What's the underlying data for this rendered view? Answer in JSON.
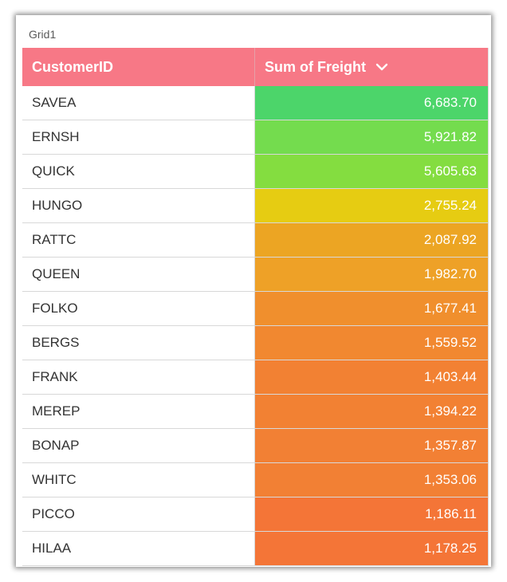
{
  "grid": {
    "title": "Grid1",
    "columns": {
      "customer_id": "CustomerID",
      "freight": "Sum of Freight"
    },
    "sort_icon": "chevron-down-icon",
    "header_color": "#f77886",
    "rows": [
      {
        "id": "SAVEA",
        "value": "6,683.70",
        "color": "#4cd56a"
      },
      {
        "id": "ERNSH",
        "value": "5,921.82",
        "color": "#74dc4e"
      },
      {
        "id": "QUICK",
        "value": "5,605.63",
        "color": "#84dd40"
      },
      {
        "id": "HUNGO",
        "value": "2,755.24",
        "color": "#e6cc12"
      },
      {
        "id": "RATTC",
        "value": "2,087.92",
        "color": "#eca523"
      },
      {
        "id": "QUEEN",
        "value": "1,982.70",
        "color": "#eea127"
      },
      {
        "id": "FOLKO",
        "value": "1,677.41",
        "color": "#f08f2d"
      },
      {
        "id": "BERGS",
        "value": "1,559.52",
        "color": "#f18830"
      },
      {
        "id": "FRANK",
        "value": "1,403.44",
        "color": "#f28133"
      },
      {
        "id": "MEREP",
        "value": "1,394.22",
        "color": "#f28133"
      },
      {
        "id": "BONAP",
        "value": "1,357.87",
        "color": "#f28034"
      },
      {
        "id": "WHITC",
        "value": "1,353.06",
        "color": "#f28034"
      },
      {
        "id": "PICCO",
        "value": "1,186.11",
        "color": "#f47537"
      },
      {
        "id": "HILAA",
        "value": "1,178.25",
        "color": "#f47537"
      }
    ]
  }
}
